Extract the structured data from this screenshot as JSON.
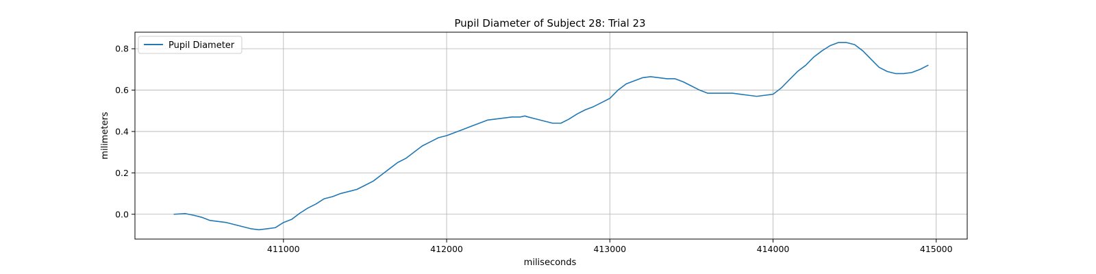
{
  "chart_data": {
    "type": "line",
    "title": "Pupil Diameter of Subject 28: Trial 23",
    "xlabel": "miliseconds",
    "ylabel": "milimeters",
    "xlim": [
      410090,
      415190
    ],
    "ylim": [
      -0.12,
      0.88
    ],
    "xticks": [
      411000,
      412000,
      413000,
      414000,
      415000
    ],
    "yticks": [
      0.0,
      0.2,
      0.4,
      0.6,
      0.8
    ],
    "grid": true,
    "legend_position": "top-left",
    "series": [
      {
        "name": "Pupil Diameter",
        "color": "#1f77b4",
        "x": [
          410330,
          410400,
          410450,
          410500,
          410550,
          410600,
          410650,
          410700,
          410750,
          410800,
          410850,
          410900,
          410950,
          411000,
          411050,
          411100,
          411150,
          411200,
          411250,
          411300,
          411350,
          411400,
          411450,
          411500,
          411550,
          411600,
          411650,
          411700,
          411750,
          411800,
          411850,
          411900,
          411950,
          412000,
          412050,
          412100,
          412150,
          412200,
          412250,
          412300,
          412350,
          412400,
          412450,
          412480,
          412500,
          412550,
          412600,
          412650,
          412700,
          412750,
          412800,
          412850,
          412900,
          412950,
          413000,
          413050,
          413100,
          413150,
          413200,
          413250,
          413300,
          413350,
          413400,
          413450,
          413500,
          413550,
          413600,
          413650,
          413700,
          413750,
          413800,
          413850,
          413900,
          413950,
          414000,
          414050,
          414100,
          414150,
          414200,
          414250,
          414300,
          414350,
          414400,
          414450,
          414500,
          414550,
          414600,
          414650,
          414700,
          414750,
          414800,
          414850,
          414900,
          414950
        ],
        "values": [
          0.0,
          0.003,
          -0.005,
          -0.015,
          -0.03,
          -0.035,
          -0.04,
          -0.05,
          -0.06,
          -0.07,
          -0.075,
          -0.07,
          -0.065,
          -0.04,
          -0.025,
          0.005,
          0.03,
          0.05,
          0.075,
          0.085,
          0.1,
          0.11,
          0.12,
          0.14,
          0.16,
          0.19,
          0.22,
          0.25,
          0.27,
          0.3,
          0.33,
          0.35,
          0.37,
          0.38,
          0.395,
          0.41,
          0.425,
          0.44,
          0.455,
          0.46,
          0.465,
          0.47,
          0.47,
          0.475,
          0.47,
          0.46,
          0.45,
          0.44,
          0.44,
          0.46,
          0.485,
          0.505,
          0.52,
          0.54,
          0.56,
          0.6,
          0.63,
          0.645,
          0.66,
          0.665,
          0.66,
          0.655,
          0.655,
          0.64,
          0.62,
          0.6,
          0.585,
          0.585,
          0.585,
          0.585,
          0.58,
          0.575,
          0.57,
          0.575,
          0.58,
          0.61,
          0.65,
          0.69,
          0.72,
          0.76,
          0.79,
          0.815,
          0.83,
          0.83,
          0.82,
          0.79,
          0.75,
          0.71,
          0.69,
          0.68,
          0.68,
          0.685,
          0.7,
          0.72
        ]
      }
    ]
  }
}
